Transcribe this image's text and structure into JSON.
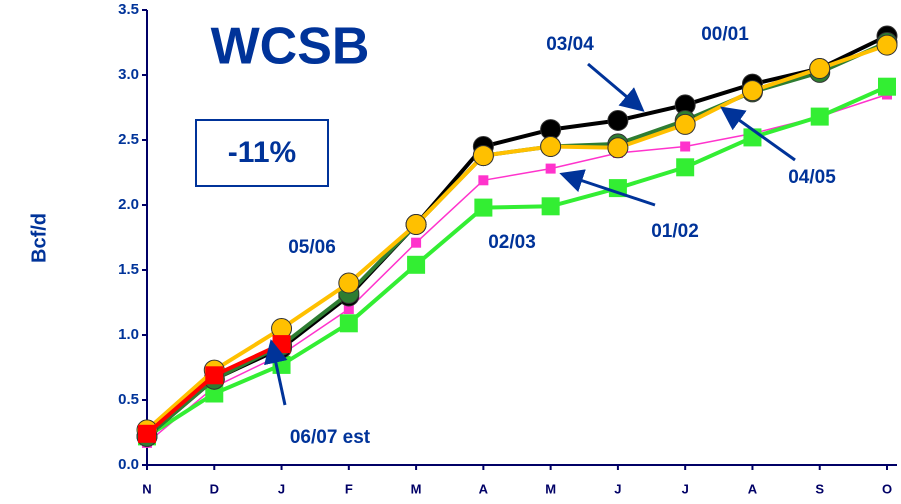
{
  "chart_data": {
    "type": "line",
    "title": "WCSB",
    "subtitle": "-11%",
    "y_label": "Bcf/d",
    "categories": [
      "N",
      "D",
      "J",
      "F",
      "M",
      "A",
      "M",
      "J",
      "J",
      "A",
      "S",
      "O"
    ],
    "ylim": [
      0,
      3.5
    ],
    "yticks": [
      {
        "value": 0,
        "label": "0.0"
      },
      0.5,
      {
        "value": 1,
        "label": "1.0"
      },
      1.5,
      {
        "value": 2,
        "label": "2.0"
      },
      2.5,
      {
        "value": 3,
        "label": "3.0"
      },
      3.5
    ],
    "series": [
      {
        "color": "#ff33cc",
        "marker": "square-small",
        "values": [
          0.17,
          0.6,
          0.85,
          1.2,
          1.71,
          2.19,
          2.28,
          2.4,
          2.45,
          2.55,
          2.68,
          2.85
        ]
      },
      {
        "color": "#33ee33",
        "marker": "square",
        "values": [
          0.22,
          0.55,
          0.77,
          1.09,
          1.54,
          1.98,
          1.99,
          2.13,
          2.29,
          2.52,
          2.68,
          2.91
        ]
      },
      {
        "color": "#000000",
        "marker": "circle",
        "values": [
          0.22,
          0.66,
          0.9,
          1.3,
          1.85,
          2.45,
          2.58,
          2.65,
          2.77,
          2.93,
          3.05,
          3.3
        ]
      },
      {
        "color": "#2e7d32",
        "marker": "circle",
        "values": [
          0.22,
          0.66,
          0.92,
          1.32,
          1.85,
          2.38,
          2.45,
          2.47,
          2.65,
          2.87,
          3.02,
          3.25
        ]
      },
      {
        "color": "#ffc000",
        "marker": "circle",
        "values": [
          0.27,
          0.73,
          1.05,
          1.4,
          1.85,
          2.38,
          2.45,
          2.44,
          2.62,
          2.88,
          3.05,
          3.23
        ]
      },
      {
        "color": "#ff0000",
        "marker": "square",
        "values": [
          0.24,
          0.69,
          0.93,
          null,
          null,
          null,
          null,
          null,
          null,
          null,
          null,
          null
        ]
      }
    ],
    "annotations": [
      "03/04",
      "00/01",
      "04/05",
      "01/02",
      "02/03",
      "05/06",
      "06/07 est"
    ]
  }
}
